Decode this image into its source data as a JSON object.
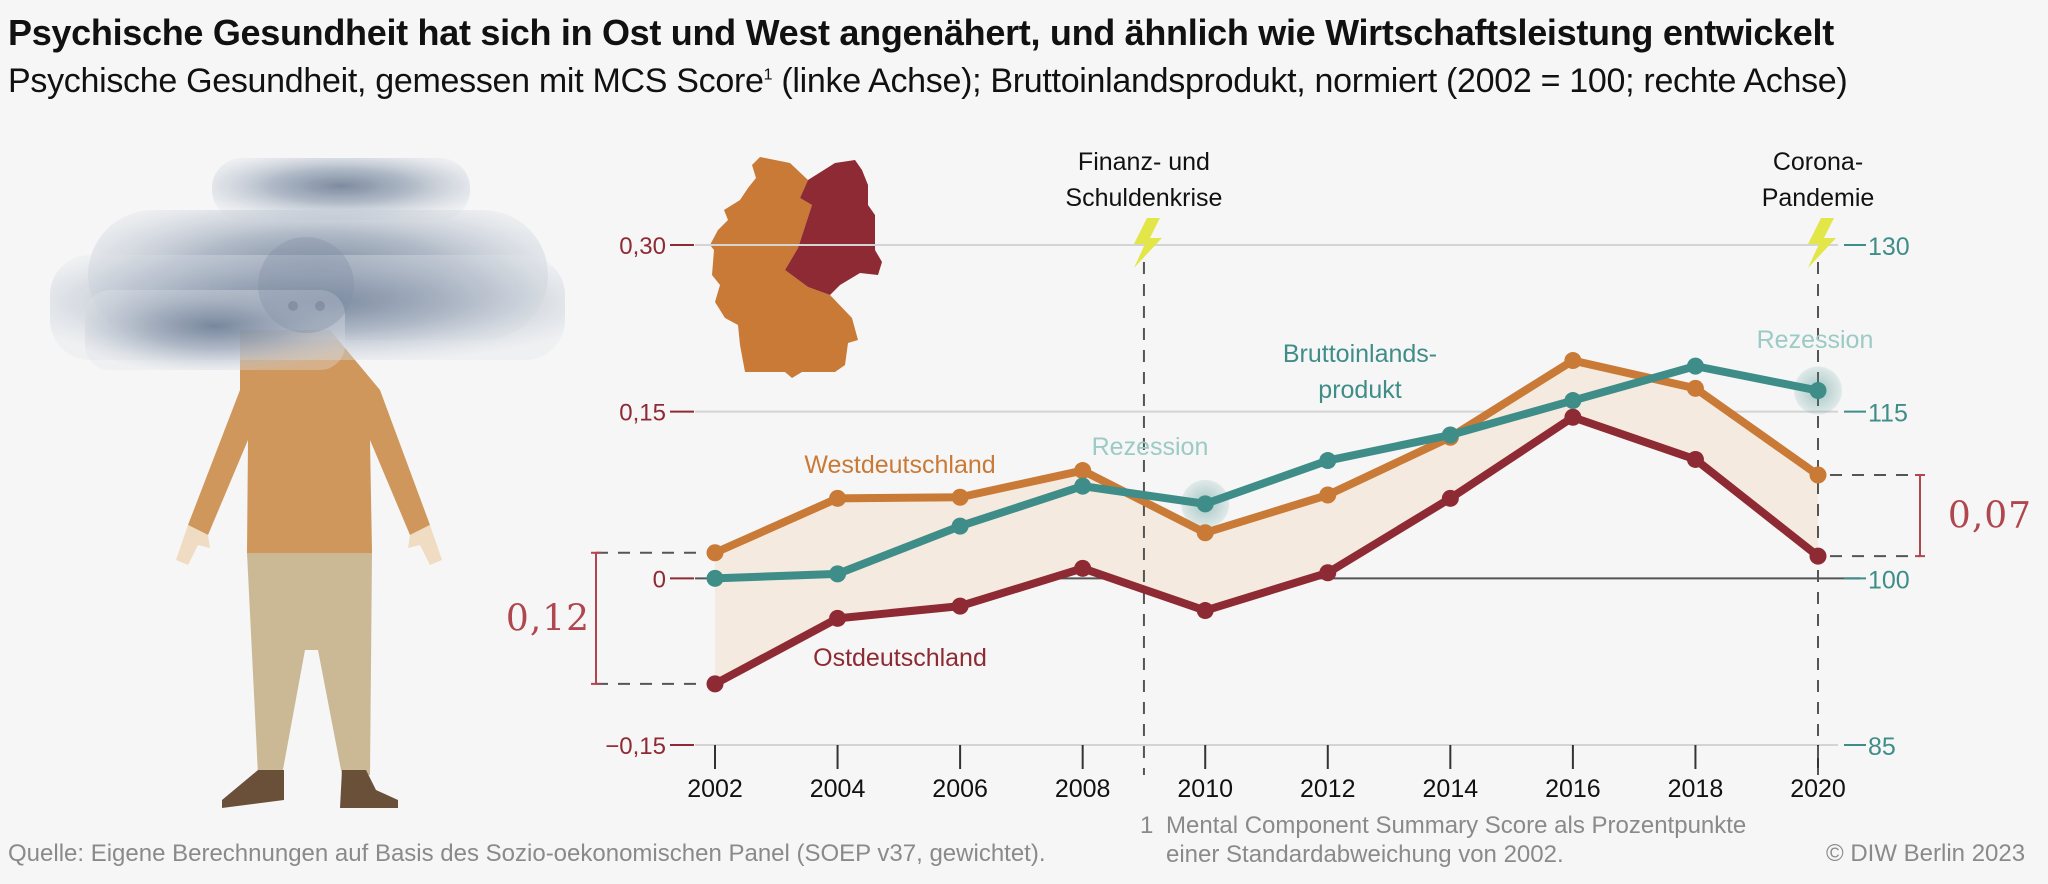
{
  "header": {
    "title": "Psychische Gesundheit hat sich in Ost und West angenähert, und ähnlich wie Wirtschaftsleistung entwickelt",
    "subtitle_part1": "Psychische Gesundheit, gemessen mit MCS Score",
    "subtitle_footnote_mark": "1",
    "subtitle_part2": " (linke Achse); Bruttoinlandsprodukt, normiert (2002 = 100; rechte Achse)"
  },
  "footer": {
    "source": "Quelle: Eigene Berechnungen auf Basis des Sozio-oekonomischen Panel (SOEP v37, gewichtet).",
    "footnote_number": "1",
    "footnote_line1": "Mental Component Summary Score als Prozentpunkte",
    "footnote_line2": "einer Standardabweichung von 2002.",
    "copyright": "© DIW Berlin 2023"
  },
  "illustration": {
    "figure": "person-with-cloud-over-head",
    "map": "germany-map-east-west"
  },
  "colors": {
    "west": "#c97a36",
    "east": "#8e2a33",
    "gdp": "#3f8d88",
    "gap_fill": "#f5eadf",
    "gap_label": "#b0474f",
    "recession_label": "#9ccac5",
    "lightning": "#e2e649",
    "map_west": "#c97a36",
    "map_east": "#8e2a33"
  },
  "chart_data": {
    "type": "line",
    "title": "Psychische Gesundheit hat sich in Ost und West angenähert, und ähnlich wie Wirtschaftsleistung entwickelt",
    "subtitle": "Psychische Gesundheit, gemessen mit MCS Score (linke Achse); Bruttoinlandsprodukt, normiert (2002 = 100; rechte Achse)",
    "x": [
      2002,
      2004,
      2006,
      2008,
      2010,
      2012,
      2014,
      2016,
      2018,
      2020
    ],
    "x_tick_labels": [
      "2002",
      "2004",
      "2006",
      "2008",
      "2010",
      "2012",
      "2014",
      "2016",
      "2018",
      "2020"
    ],
    "left_axis": {
      "ylim": [
        -0.15,
        0.3
      ],
      "ticks": [
        -0.15,
        0,
        0.15,
        0.3
      ],
      "tick_labels": [
        "−0,15",
        "0",
        "0,15",
        "0,30"
      ]
    },
    "right_axis": {
      "ylim": [
        85,
        130
      ],
      "ticks": [
        85,
        100,
        115,
        130
      ],
      "tick_labels": [
        "85",
        "100",
        "115",
        "130"
      ]
    },
    "series": [
      {
        "name": "Westdeutschland",
        "axis": "left",
        "values": [
          0.023,
          0.072,
          0.073,
          0.097,
          0.041,
          0.075,
          0.127,
          0.196,
          0.171,
          0.093
        ]
      },
      {
        "name": "Ostdeutschland",
        "axis": "left",
        "values": [
          -0.095,
          -0.036,
          -0.025,
          0.009,
          -0.029,
          0.005,
          0.072,
          0.145,
          0.107,
          0.02
        ]
      },
      {
        "name": "Bruttoinlands-produkt",
        "axis": "right",
        "values": [
          100,
          100.4,
          104.7,
          108.3,
          106.7,
          110.6,
          112.9,
          116.0,
          119.1,
          116.9
        ]
      }
    ],
    "series_labels": {
      "west": "Westdeutschland",
      "east": "Ostdeutschland",
      "gdp_line1": "Bruttoinlands-",
      "gdp_line2": "produkt"
    },
    "events": [
      {
        "x": 2009,
        "line1": "Finanz- und",
        "line2": "Schuldenkrise"
      },
      {
        "x": 2020,
        "line1": "Corona-",
        "line2": "Pandemie"
      }
    ],
    "recessions": [
      {
        "x": 2010,
        "label": "Rezession"
      },
      {
        "x": 2020,
        "label": "Rezession"
      }
    ],
    "gap_annotations": [
      {
        "x": 2002,
        "label": "0,12",
        "from": -0.095,
        "to": 0.023,
        "side": "left"
      },
      {
        "x": 2020,
        "label": "0,07",
        "from": 0.02,
        "to": 0.093,
        "side": "right"
      }
    ],
    "grid": true,
    "legend": "inline-labels"
  }
}
